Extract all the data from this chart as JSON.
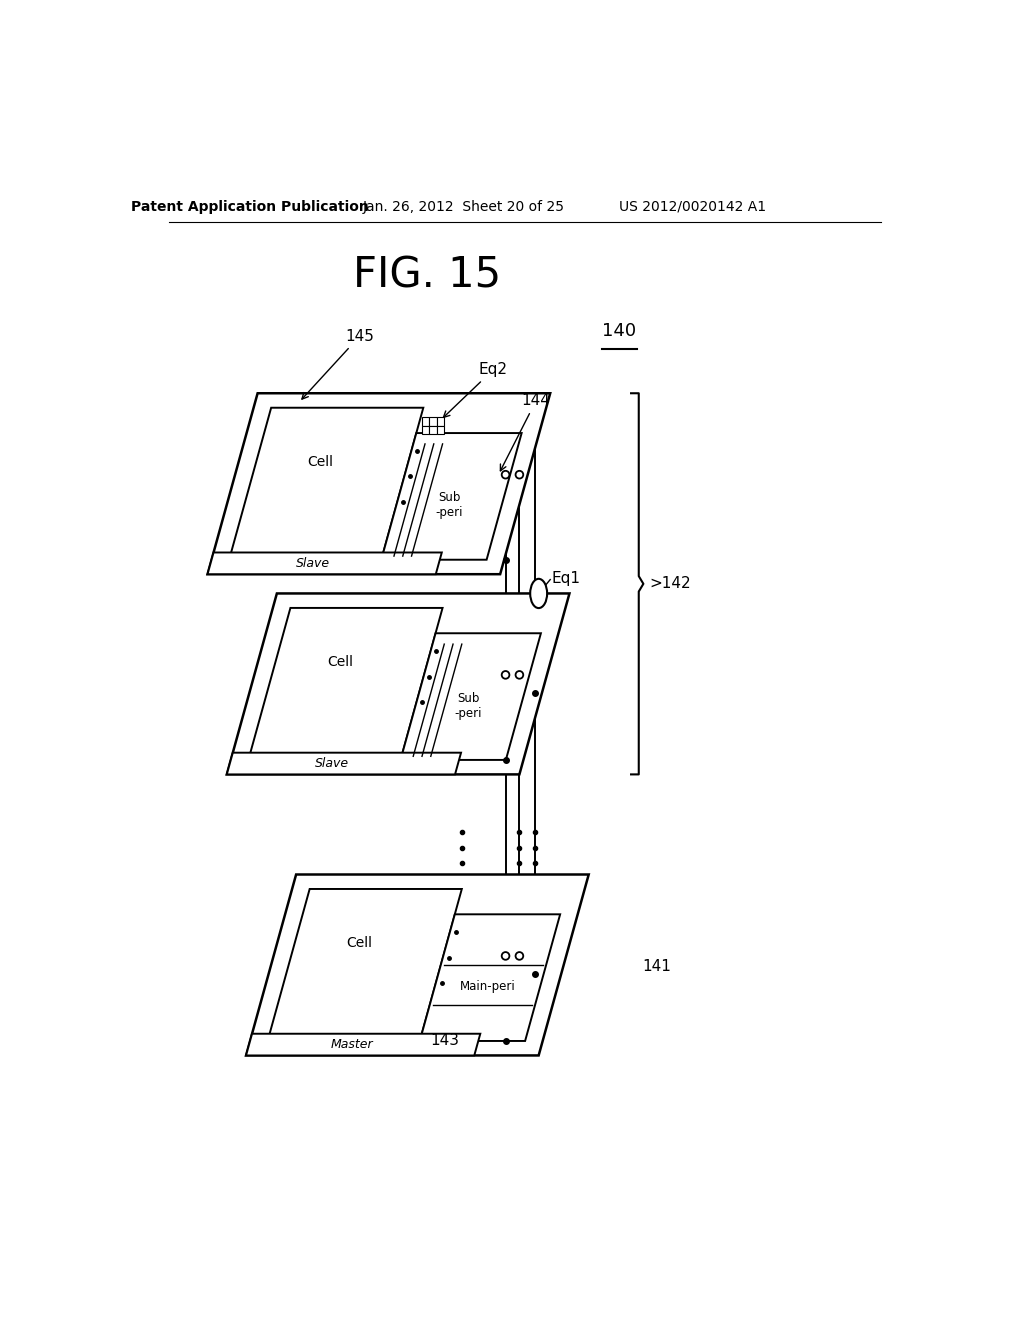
{
  "title": "FIG. 15",
  "header_left": "Patent Application Publication",
  "header_mid": "Jan. 26, 2012  Sheet 20 of 25",
  "header_right": "US 2012/0020142 A1",
  "bg_color": "#ffffff",
  "label_140": "140",
  "label_141": "141",
  "label_142": "142",
  "label_143": "143",
  "label_144": "144",
  "label_145": "145",
  "label_eq1": "Eq1",
  "label_eq2": "Eq2",
  "lw_main": 1.8,
  "lw_thin": 1.4
}
